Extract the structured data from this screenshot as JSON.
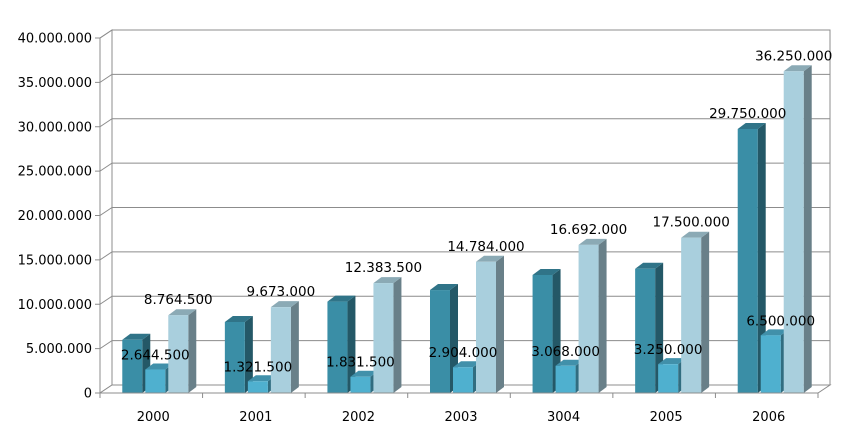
{
  "chart_data": {
    "type": "bar",
    "style": "3d-clustered-column",
    "categories": [
      "2000",
      "2001",
      "2002",
      "2003",
      "3004",
      "2005",
      "2006"
    ],
    "series": [
      {
        "color": "#3a8ea6",
        "values": [
          6000000,
          8000000,
          10300000,
          11600000,
          13300000,
          14000000,
          29750000
        ],
        "labels": [
          "",
          "",
          "",
          "",
          "",
          "",
          "29.750.000"
        ]
      },
      {
        "color": "#4fb0cf",
        "values": [
          2644500,
          1321500,
          1831500,
          2904000,
          3068000,
          3250000,
          6500000
        ],
        "labels": [
          "2.644.500",
          "1.321.500",
          "1.831.500",
          "2.904.000",
          "3.068.000",
          "3.250.000",
          "6.500.000"
        ]
      },
      {
        "color": "#a9cfdd",
        "values": [
          8764500,
          9673000,
          12383500,
          14784000,
          16692000,
          17500000,
          36250000
        ],
        "labels": [
          "8.764.500",
          "9.673.000",
          "12.383.500",
          "14.784.000",
          "16.692.000",
          "17.500.000",
          "36.250.000"
        ]
      }
    ],
    "y_ticks": [
      "0",
      "5.000.000",
      "10.000.000",
      "15.000.000",
      "20.000.000",
      "25.000.000",
      "30.000.000",
      "35.000.000",
      "40.000.000"
    ],
    "ylim": [
      0,
      40000000
    ],
    "grid": true,
    "title": "",
    "xlabel": "",
    "ylabel": ""
  }
}
